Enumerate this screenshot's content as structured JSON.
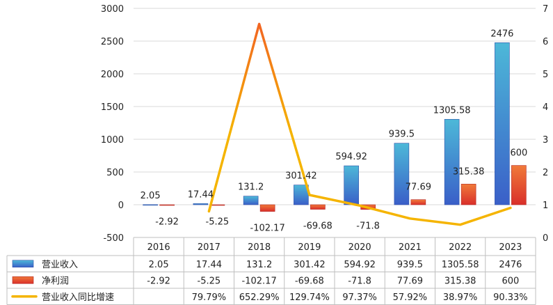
{
  "chart_data": {
    "type": "bar",
    "categories": [
      "2016",
      "2017",
      "2018",
      "2019",
      "2020",
      "2021",
      "2022",
      "2023"
    ],
    "series": [
      {
        "name": "营业收入",
        "type": "bar",
        "axis": "left",
        "values": [
          2.05,
          17.44,
          131.2,
          301.42,
          594.92,
          939.5,
          1305.58,
          2476
        ],
        "color_top": "#4db8d8",
        "color_bottom": "#3a5fc8"
      },
      {
        "name": "净利润",
        "type": "bar",
        "axis": "left",
        "values": [
          -2.92,
          -5.25,
          -102.17,
          -69.68,
          -71.8,
          77.69,
          315.38,
          600
        ],
        "color_top": "#f07a3a",
        "color_bottom": "#d92f2a"
      },
      {
        "name": "营业收入同比增速",
        "type": "line",
        "axis": "right",
        "values": [
          null,
          0.7979,
          6.5229,
          1.2974,
          0.9737,
          0.5792,
          0.3897,
          0.9033
        ],
        "color": "#f5b400",
        "peak_color": "#f26522"
      }
    ],
    "table_rows": [
      {
        "legend": "营业收入",
        "cells": [
          "2.05",
          "17.44",
          "131.2",
          "301.42",
          "594.92",
          "939.5",
          "1305.58",
          "2476"
        ]
      },
      {
        "legend": "净利润",
        "cells": [
          "-2.92",
          "-5.25",
          "-102.17",
          "-69.68",
          "-71.8",
          "77.69",
          "315.38",
          "600"
        ]
      },
      {
        "legend": "营业收入同比增速",
        "cells": [
          "",
          "79.79%",
          "652.29%",
          "129.74%",
          "97.37%",
          "57.92%",
          "38.97%",
          "90.33%"
        ]
      }
    ],
    "data_labels_revenue": [
      "2.05",
      "17.44",
      "131.2",
      "301.42",
      "594.92",
      "939.5",
      "1305.58",
      "2476"
    ],
    "data_labels_profit": [
      "-2.92",
      "-5.25",
      "-102.17",
      "-69.68",
      "-71.8",
      "77.69",
      "315.38",
      "600"
    ],
    "y_left": {
      "min": -500,
      "max": 3000,
      "step": 500,
      "ticks": [
        "-500",
        "0",
        "500",
        "1000",
        "1500",
        "2000",
        "2500",
        "3000"
      ]
    },
    "y_right": {
      "min": 0,
      "max": 7,
      "step": 1,
      "ticks": [
        "0",
        "1",
        "2",
        "3",
        "4",
        "5",
        "6",
        "7"
      ]
    },
    "grid": true,
    "legend": "data-table"
  }
}
